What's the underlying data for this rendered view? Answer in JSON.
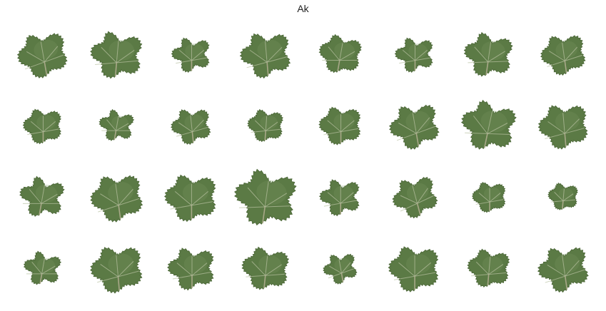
{
  "title": "Ak",
  "colors": {
    "leaf_fill": "#5b7a45",
    "leaf_dark": "#4a6636",
    "leaf_light": "#7a9663",
    "vein": "#b9c2a2",
    "background": "#ffffff"
  },
  "grid": {
    "rows": 4,
    "cols": 8
  },
  "leaves": [
    {
      "scale": 1.0,
      "rot": -10,
      "shape": "a"
    },
    {
      "scale": 1.05,
      "rot": 5,
      "shape": "b"
    },
    {
      "scale": 0.78,
      "rot": 0,
      "shape": "c"
    },
    {
      "scale": 1.02,
      "rot": -5,
      "shape": "b"
    },
    {
      "scale": 0.85,
      "rot": 10,
      "shape": "a"
    },
    {
      "scale": 0.78,
      "rot": 0,
      "shape": "c"
    },
    {
      "scale": 0.98,
      "rot": 8,
      "shape": "b"
    },
    {
      "scale": 0.9,
      "rot": -8,
      "shape": "a"
    },
    {
      "scale": 0.78,
      "rot": 0,
      "shape": "a"
    },
    {
      "scale": 0.7,
      "rot": 10,
      "shape": "c"
    },
    {
      "scale": 0.8,
      "rot": -6,
      "shape": "b"
    },
    {
      "scale": 0.72,
      "rot": 4,
      "shape": "a"
    },
    {
      "scale": 0.85,
      "rot": 0,
      "shape": "a"
    },
    {
      "scale": 1.0,
      "rot": -10,
      "shape": "b"
    },
    {
      "scale": 1.1,
      "rot": 12,
      "shape": "b"
    },
    {
      "scale": 1.0,
      "rot": -5,
      "shape": "a"
    },
    {
      "scale": 0.9,
      "rot": 10,
      "shape": "c"
    },
    {
      "scale": 1.05,
      "rot": -8,
      "shape": "a"
    },
    {
      "scale": 1.05,
      "rot": 0,
      "shape": "a"
    },
    {
      "scale": 1.25,
      "rot": 8,
      "shape": "b"
    },
    {
      "scale": 0.82,
      "rot": 0,
      "shape": "c"
    },
    {
      "scale": 0.9,
      "rot": -15,
      "shape": "b"
    },
    {
      "scale": 0.68,
      "rot": 0,
      "shape": "a"
    },
    {
      "scale": 0.6,
      "rot": 5,
      "shape": "a"
    },
    {
      "scale": 0.75,
      "rot": 10,
      "shape": "c"
    },
    {
      "scale": 1.05,
      "rot": -5,
      "shape": "a"
    },
    {
      "scale": 0.95,
      "rot": 0,
      "shape": "b"
    },
    {
      "scale": 0.95,
      "rot": 6,
      "shape": "a"
    },
    {
      "scale": 0.68,
      "rot": -10,
      "shape": "c"
    },
    {
      "scale": 1.02,
      "rot": 0,
      "shape": "a"
    },
    {
      "scale": 0.85,
      "rot": 5,
      "shape": "a"
    },
    {
      "scale": 1.02,
      "rot": -8,
      "shape": "b"
    }
  ]
}
